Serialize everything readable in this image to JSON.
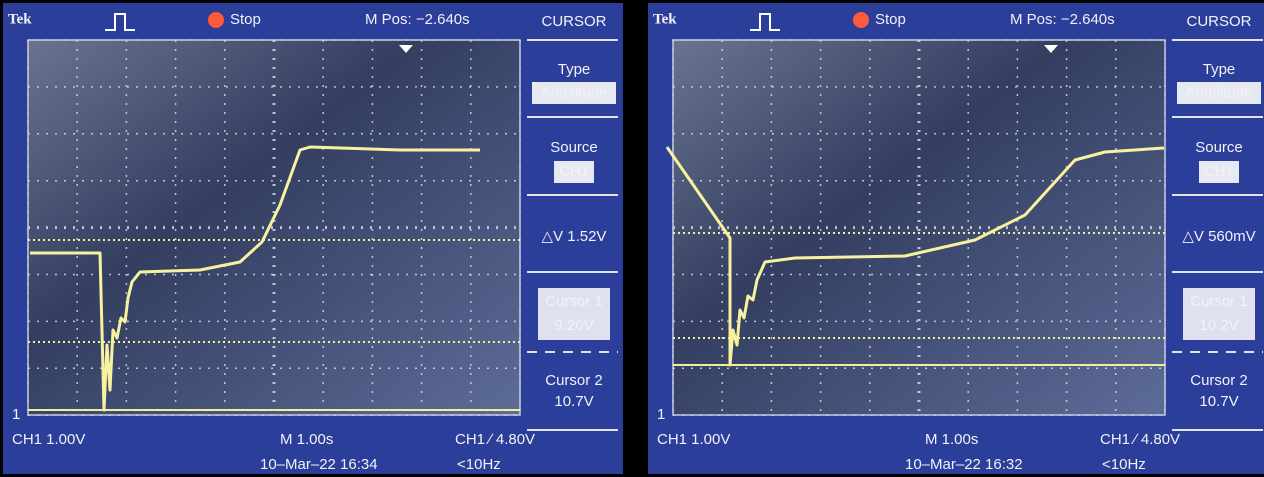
{
  "screens": [
    {
      "brand": "Tek",
      "status": "Stop",
      "position": "M Pos: −2.640s",
      "menu": "CURSOR",
      "type_label": "Type",
      "type_value": "Amplitude",
      "source_label": "Source",
      "source_value": "CH1",
      "delta": "△V 1.52V",
      "cursor1_label": "Cursor 1",
      "cursor1_value": "9.20V",
      "cursor2_label": "Cursor 2",
      "cursor2_value": "10.7V",
      "marker": "1",
      "ch_scale": "CH1  1.00V",
      "time_scale": "M 1.00s",
      "trigger": "CH1 ∕ 4.80V",
      "date": "10–Mar–22 16:34",
      "freq": "<10Hz"
    },
    {
      "brand": "Tek",
      "status": "Stop",
      "position": "M Pos: −2.640s",
      "menu": "CURSOR",
      "type_label": "Type",
      "type_value": "Amplitude",
      "source_label": "Source",
      "source_value": "CH1",
      "delta": "△V 560mV",
      "cursor1_label": "Cursor 1",
      "cursor1_value": "10.2V",
      "cursor2_label": "Cursor 2",
      "cursor2_value": "10.7V",
      "marker": "1",
      "ch_scale": "CH1  1.00V",
      "time_scale": "M 1.00s",
      "trigger": "CH1 ∕ 4.80V",
      "date": "10–Mar–22 16:32",
      "freq": "<10Hz"
    }
  ]
}
